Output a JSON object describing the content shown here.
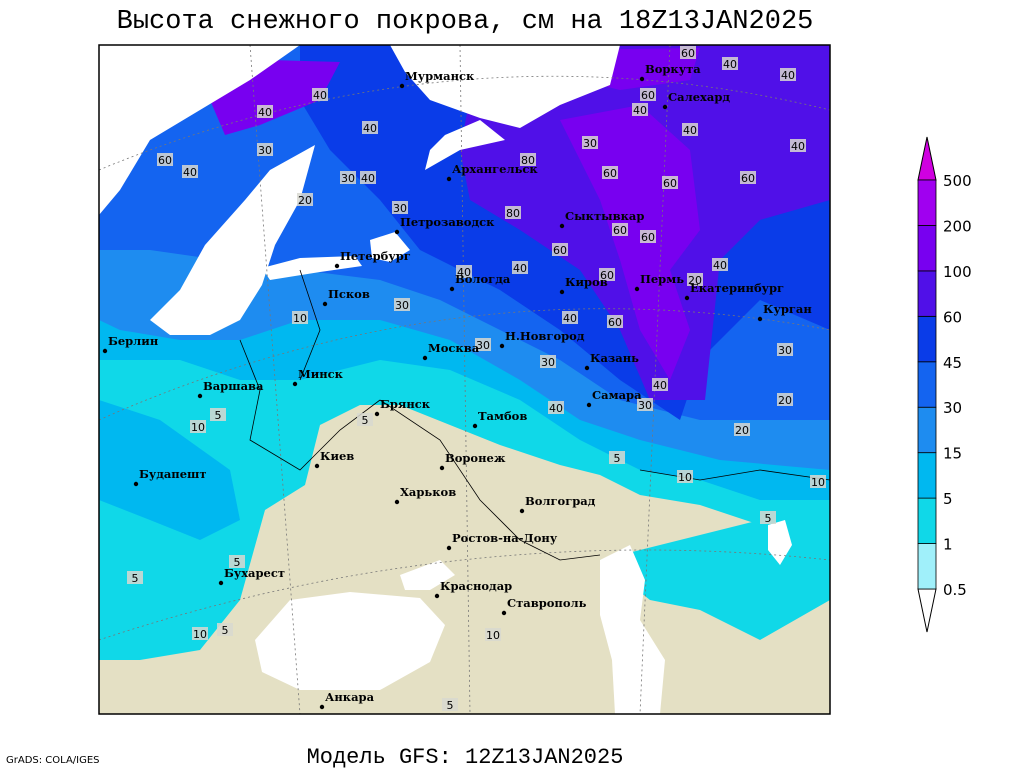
{
  "title": "Высота снежного покрова, см на 18Z13JAN2025",
  "model": "Модель GFS: 12Z13JAN2025",
  "credit": "GrADS: COLA/IGES",
  "colorbar": {
    "levels": [
      0.5,
      1,
      5,
      15,
      30,
      45,
      60,
      100,
      200,
      500
    ],
    "colors": [
      "#ffffff",
      "#a0f0fa",
      "#10d8e8",
      "#00b8f0",
      "#1e8cf0",
      "#1464f0",
      "#0a3ce8",
      "#5010e8",
      "#7800f0",
      "#a000f0",
      "#d000e0"
    ]
  },
  "cities": [
    "Мурманск",
    "Воркута",
    "Салехард",
    "Архангельск",
    "Сыктывкар",
    "Петрозаводск",
    "Петербург",
    "Вологда",
    "Киров",
    "Пермь",
    "Екатеринбург",
    "Курган",
    "Псков",
    "Н.Новгород",
    "Казань",
    "Москва",
    "Берлин",
    "Варшава",
    "Минск",
    "Брянск",
    "Тамбов",
    "Самара",
    "Киев",
    "Воронеж",
    "Будапешт",
    "Харьков",
    "Волгоград",
    "Ростов-на-Дону",
    "Бухарест",
    "Краснодар",
    "Ставрополь",
    "Анкара"
  ],
  "contour_labels": [
    40,
    40,
    60,
    40,
    30,
    30,
    40,
    20,
    30,
    40,
    80,
    60,
    30,
    60,
    60,
    40,
    40,
    40,
    60,
    40,
    40,
    60,
    80,
    40,
    60,
    60,
    60,
    40,
    20,
    40,
    60,
    40,
    60,
    30,
    20,
    40,
    20,
    10,
    5,
    10,
    30,
    5,
    10,
    5,
    5,
    5,
    10,
    5,
    10,
    5,
    30,
    30,
    30,
    40,
    10,
    5
  ]
}
